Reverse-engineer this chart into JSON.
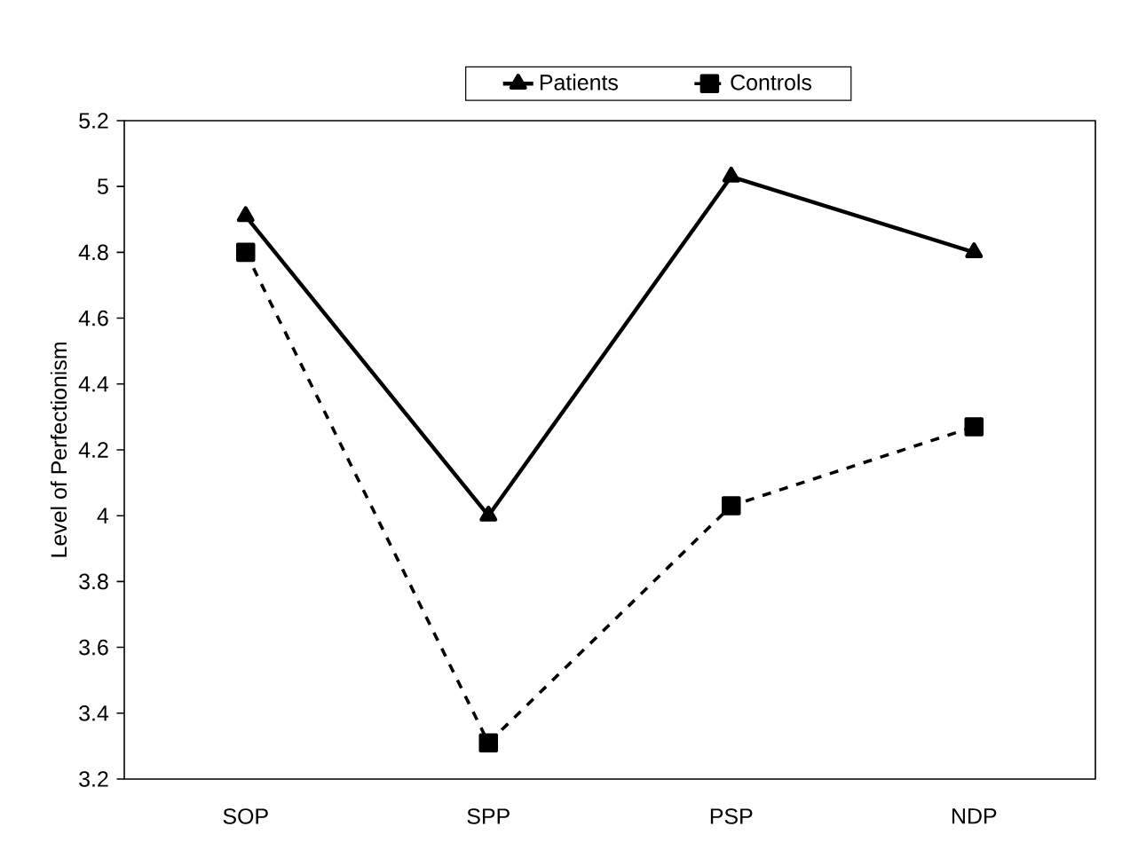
{
  "chart_data": {
    "type": "line",
    "ylabel": "Level of Perfectionism",
    "categories": [
      "SOP",
      "SPP",
      "PSP",
      "NDP"
    ],
    "series": [
      {
        "name": "Patients",
        "color": "#000000",
        "values": [
          4.91,
          4.0,
          5.03,
          4.8
        ],
        "marker": "triangle",
        "line_style": "solid"
      },
      {
        "name": "Controls",
        "color": "#000000",
        "values": [
          4.8,
          3.31,
          4.03,
          4.27
        ],
        "marker": "square",
        "line_style": "dashed"
      }
    ],
    "ylim": [
      3.2,
      5.2
    ],
    "yticks": [
      3.2,
      3.4,
      3.6,
      3.8,
      4,
      4.2,
      4.4,
      4.6,
      4.8,
      5,
      5.2
    ],
    "grid": false,
    "legend": "top"
  }
}
